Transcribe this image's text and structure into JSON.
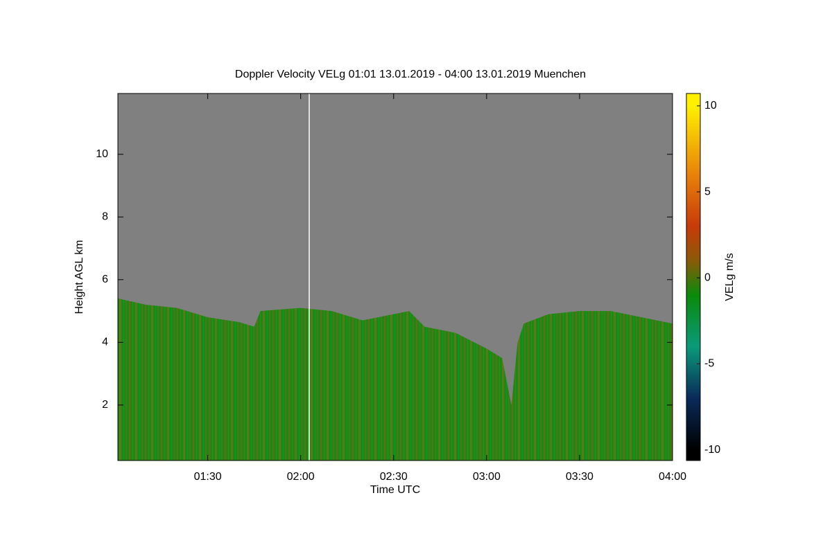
{
  "chart_data": {
    "type": "time-height",
    "title": "Doppler Velocity VELg   01:01 13.01.2019 - 04:00 13.01.2019 Muenchen",
    "x_label": "Time UTC",
    "y_label": "Height AGL km",
    "colorbar_label": "VELg m/s",
    "x": [
      "01:01",
      "01:10",
      "01:20",
      "01:30",
      "01:40",
      "01:45",
      "01:47",
      "02:00",
      "02:10",
      "02:20",
      "02:30",
      "02:35",
      "02:40",
      "02:50",
      "03:00",
      "03:05",
      "03:08",
      "03:10",
      "03:12",
      "03:20",
      "03:30",
      "03:40",
      "03:50",
      "04:00"
    ],
    "cloud_top": [
      5.4,
      5.2,
      5.1,
      4.8,
      4.65,
      4.5,
      5.0,
      5.1,
      5.0,
      4.7,
      4.9,
      5.0,
      4.5,
      4.3,
      3.8,
      3.5,
      2.0,
      4.0,
      4.6,
      4.9,
      5.0,
      5.0,
      4.8,
      4.6
    ],
    "xlim": [
      "01:01",
      "04:00"
    ],
    "xticks": [
      "01:30",
      "02:00",
      "02:30",
      "03:00",
      "03:30",
      "04:00"
    ],
    "ylim": [
      0.23,
      11.94
    ],
    "yticks": [
      2,
      4,
      6,
      8,
      10
    ],
    "zlim": [
      -10.62,
      10.72
    ],
    "zticks": [
      -10,
      -5,
      0,
      5,
      10
    ],
    "background_color": "#808080",
    "colormap": [
      {
        "value": -10,
        "color": "#000000"
      },
      {
        "value": -7,
        "color": "#0a2a5a"
      },
      {
        "value": -4,
        "color": "#0a9a7a"
      },
      {
        "value": -1,
        "color": "#0a8a0a"
      },
      {
        "value": 1,
        "color": "#8a5a0a"
      },
      {
        "value": 3,
        "color": "#c83a0a"
      },
      {
        "value": 6,
        "color": "#e8820a"
      },
      {
        "value": 10,
        "color": "#fff000"
      }
    ]
  }
}
